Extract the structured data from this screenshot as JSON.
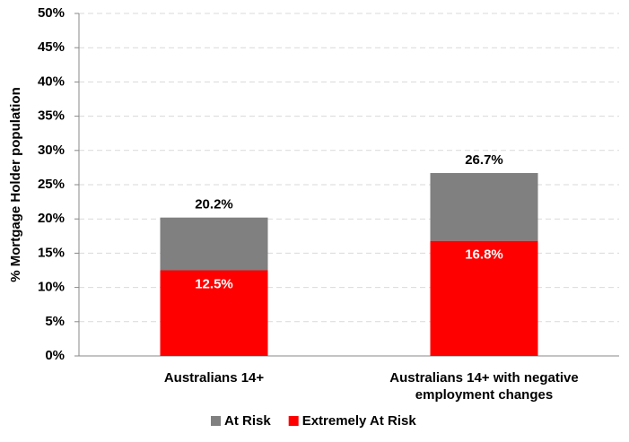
{
  "chart_data": {
    "type": "stacked_bar",
    "y_label": "% Mortgage Holder population",
    "categories": [
      "Australians 14+",
      "Australians 14+ with negative employment changes"
    ],
    "series": [
      {
        "name": "At Risk",
        "color": "#808080",
        "values": [
          7.7,
          9.9
        ]
      },
      {
        "name": "Extremely At Risk",
        "color": "#ff0000",
        "values": [
          12.5,
          16.8
        ],
        "value_labels": [
          "12.5%",
          "16.8%"
        ]
      }
    ],
    "totals": [
      20.2,
      26.7
    ],
    "total_labels": [
      "20.2%",
      "26.7%"
    ],
    "ylim": [
      0,
      50
    ],
    "yticks": [
      {
        "value": 0,
        "label": "0%"
      },
      {
        "value": 5,
        "label": "5%"
      },
      {
        "value": 10,
        "label": "10%"
      },
      {
        "value": 15,
        "label": "15%"
      },
      {
        "value": 20,
        "label": "20%"
      },
      {
        "value": 25,
        "label": "25%"
      },
      {
        "value": 30,
        "label": "30%"
      },
      {
        "value": 35,
        "label": "35%"
      },
      {
        "value": 40,
        "label": "40%"
      },
      {
        "value": 45,
        "label": "45%"
      },
      {
        "value": 50,
        "label": "50%"
      }
    ],
    "grid": true
  }
}
